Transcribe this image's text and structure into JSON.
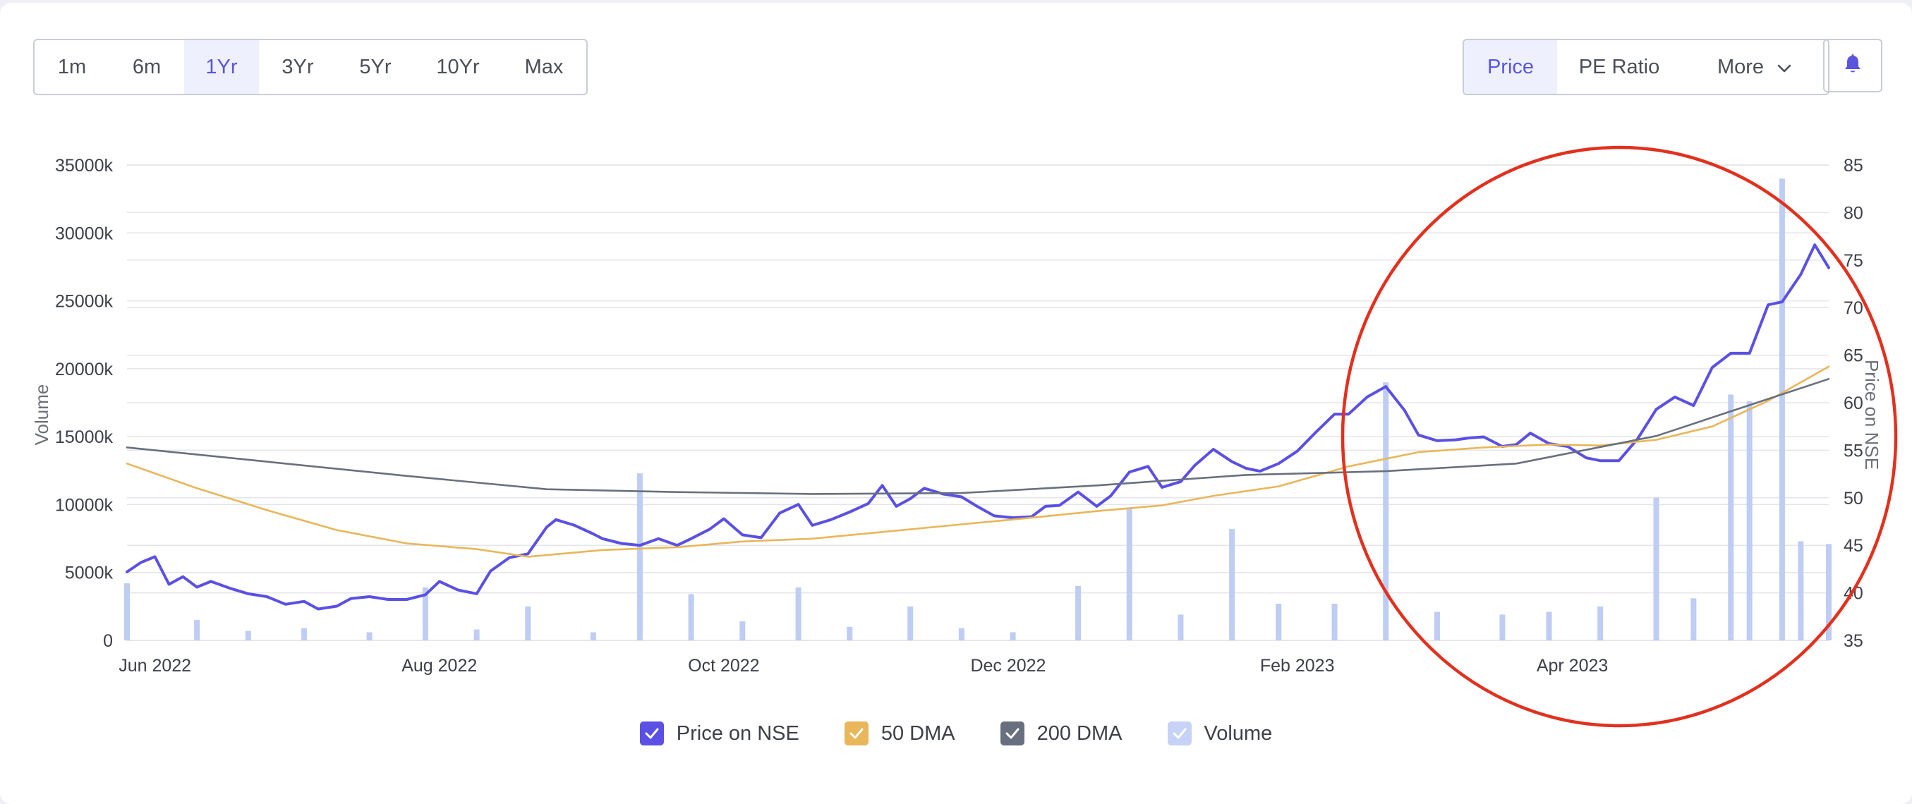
{
  "range_buttons": [
    "1m",
    "6m",
    "1Yr",
    "3Yr",
    "5Yr",
    "10Yr",
    "Max"
  ],
  "range_active": "1Yr",
  "metric_buttons": {
    "price": "Price",
    "pe": "PE Ratio",
    "more": "More"
  },
  "metric_active": "Price",
  "icons": {
    "alert": "bell-icon",
    "more": "chevron-down-icon",
    "legend": "checkmark-icon"
  },
  "colors": {
    "price": "#5b50e3",
    "dma50": "#e9b659",
    "dma200": "#68707f",
    "volume": "#bfcdf4",
    "highlight_circle": "#e1311e",
    "accent": "#5a55e0"
  },
  "annotation": {
    "type": "circle",
    "shape": "red freehand circle",
    "covers": "Feb 2023 - May 2023"
  },
  "chart_data": {
    "type": "line",
    "title": "",
    "xlabel": "",
    "ylabel_left": "Volume",
    "ylabel_right": "Price on NSE",
    "xlim": [
      "2022-05-26",
      "2023-05-26"
    ],
    "ylim_left": [
      0,
      35000
    ],
    "ylim_right": [
      35,
      85
    ],
    "y_left_ticks": [
      "0",
      "5000k",
      "10000k",
      "15000k",
      "20000k",
      "25000k",
      "30000k",
      "35000k"
    ],
    "y_right_ticks": [
      "35",
      "40",
      "45",
      "50",
      "55",
      "60",
      "65",
      "70",
      "75",
      "80",
      "85"
    ],
    "x_ticks": [
      {
        "label": "Jun 2022",
        "date": "2022-06-01"
      },
      {
        "label": "Aug 2022",
        "date": "2022-08-01"
      },
      {
        "label": "Oct 2022",
        "date": "2022-10-01"
      },
      {
        "label": "Dec 2022",
        "date": "2022-12-01"
      },
      {
        "label": "Feb 2023",
        "date": "2023-02-01"
      },
      {
        "label": "Apr 2023",
        "date": "2023-04-01"
      }
    ],
    "grid": true,
    "legend_position": "bottom",
    "series": [
      {
        "name": "Price on NSE",
        "axis": "right",
        "style": "line",
        "points": [
          [
            "2022-05-26",
            42.2
          ],
          [
            "2022-05-29",
            43.2
          ],
          [
            "2022-06-01",
            43.8
          ],
          [
            "2022-06-04",
            40.9
          ],
          [
            "2022-06-07",
            41.7
          ],
          [
            "2022-06-10",
            40.6
          ],
          [
            "2022-06-13",
            41.2
          ],
          [
            "2022-06-17",
            40.5
          ],
          [
            "2022-06-21",
            39.9
          ],
          [
            "2022-06-25",
            39.6
          ],
          [
            "2022-06-29",
            38.8
          ],
          [
            "2022-07-03",
            39.1
          ],
          [
            "2022-07-06",
            38.3
          ],
          [
            "2022-07-10",
            38.6
          ],
          [
            "2022-07-13",
            39.4
          ],
          [
            "2022-07-17",
            39.6
          ],
          [
            "2022-07-21",
            39.3
          ],
          [
            "2022-07-25",
            39.3
          ],
          [
            "2022-07-29",
            39.8
          ],
          [
            "2022-08-01",
            41.2
          ],
          [
            "2022-08-05",
            40.3
          ],
          [
            "2022-08-09",
            39.9
          ],
          [
            "2022-08-12",
            42.3
          ],
          [
            "2022-08-16",
            43.7
          ],
          [
            "2022-08-20",
            44.1
          ],
          [
            "2022-08-24",
            46.9
          ],
          [
            "2022-08-26",
            47.7
          ],
          [
            "2022-08-30",
            47.1
          ],
          [
            "2022-09-03",
            46.2
          ],
          [
            "2022-09-05",
            45.7
          ],
          [
            "2022-09-09",
            45.2
          ],
          [
            "2022-09-13",
            45.0
          ],
          [
            "2022-09-17",
            45.7
          ],
          [
            "2022-09-21",
            45.0
          ],
          [
            "2022-09-24",
            45.7
          ],
          [
            "2022-09-28",
            46.7
          ],
          [
            "2022-10-01",
            47.8
          ],
          [
            "2022-10-05",
            46.1
          ],
          [
            "2022-10-09",
            45.8
          ],
          [
            "2022-10-13",
            48.4
          ],
          [
            "2022-10-17",
            49.3
          ],
          [
            "2022-10-20",
            47.1
          ],
          [
            "2022-10-24",
            47.7
          ],
          [
            "2022-10-28",
            48.5
          ],
          [
            "2022-11-01",
            49.4
          ],
          [
            "2022-11-04",
            51.3
          ],
          [
            "2022-11-07",
            49.1
          ],
          [
            "2022-11-10",
            49.9
          ],
          [
            "2022-11-13",
            51.0
          ],
          [
            "2022-11-17",
            50.4
          ],
          [
            "2022-11-21",
            50.1
          ],
          [
            "2022-11-24",
            49.2
          ],
          [
            "2022-11-28",
            48.1
          ],
          [
            "2022-12-02",
            47.9
          ],
          [
            "2022-12-06",
            48.0
          ],
          [
            "2022-12-09",
            49.1
          ],
          [
            "2022-12-12",
            49.2
          ],
          [
            "2022-12-16",
            50.6
          ],
          [
            "2022-12-20",
            49.1
          ],
          [
            "2022-12-23",
            50.2
          ],
          [
            "2022-12-27",
            52.7
          ],
          [
            "2022-12-31",
            53.3
          ],
          [
            "2023-01-03",
            51.1
          ],
          [
            "2023-01-07",
            51.7
          ],
          [
            "2023-01-10",
            53.4
          ],
          [
            "2023-01-14",
            55.1
          ],
          [
            "2023-01-18",
            53.8
          ],
          [
            "2023-01-21",
            53.1
          ],
          [
            "2023-01-24",
            52.8
          ],
          [
            "2023-01-28",
            53.6
          ],
          [
            "2023-02-01",
            54.9
          ],
          [
            "2023-02-05",
            56.9
          ],
          [
            "2023-02-09",
            58.8
          ],
          [
            "2023-02-12",
            58.8
          ],
          [
            "2023-02-16",
            60.6
          ],
          [
            "2023-02-20",
            61.7
          ],
          [
            "2023-02-24",
            59.2
          ],
          [
            "2023-02-27",
            56.6
          ],
          [
            "2023-03-03",
            56.0
          ],
          [
            "2023-03-07",
            56.1
          ],
          [
            "2023-03-10",
            56.3
          ],
          [
            "2023-03-13",
            56.4
          ],
          [
            "2023-03-17",
            55.4
          ],
          [
            "2023-03-20",
            55.6
          ],
          [
            "2023-03-23",
            56.8
          ],
          [
            "2023-03-27",
            55.7
          ],
          [
            "2023-03-31",
            55.4
          ],
          [
            "2023-04-04",
            54.2
          ],
          [
            "2023-04-07",
            53.9
          ],
          [
            "2023-04-11",
            53.9
          ],
          [
            "2023-04-15",
            56.2
          ],
          [
            "2023-04-19",
            59.3
          ],
          [
            "2023-04-23",
            60.6
          ],
          [
            "2023-04-27",
            59.7
          ],
          [
            "2023-05-01",
            63.7
          ],
          [
            "2023-05-05",
            65.2
          ],
          [
            "2023-05-09",
            65.2
          ],
          [
            "2023-05-13",
            70.3
          ],
          [
            "2023-05-16",
            70.6
          ],
          [
            "2023-05-20",
            73.5
          ],
          [
            "2023-05-23",
            76.6
          ],
          [
            "2023-05-26",
            74.2
          ]
        ]
      },
      {
        "name": "50 DMA",
        "axis": "right",
        "style": "line",
        "points": [
          [
            "2022-05-26",
            53.6
          ],
          [
            "2022-06-10",
            51.0
          ],
          [
            "2022-06-25",
            48.7
          ],
          [
            "2022-07-10",
            46.6
          ],
          [
            "2022-07-25",
            45.2
          ],
          [
            "2022-08-09",
            44.6
          ],
          [
            "2022-08-20",
            43.8
          ],
          [
            "2022-09-05",
            44.5
          ],
          [
            "2022-09-21",
            44.8
          ],
          [
            "2022-10-05",
            45.4
          ],
          [
            "2022-10-20",
            45.7
          ],
          [
            "2022-11-04",
            46.4
          ],
          [
            "2022-11-21",
            47.2
          ],
          [
            "2022-12-06",
            47.9
          ],
          [
            "2022-12-20",
            48.6
          ],
          [
            "2023-01-03",
            49.2
          ],
          [
            "2023-01-14",
            50.2
          ],
          [
            "2023-01-28",
            51.2
          ],
          [
            "2023-02-12",
            53.3
          ],
          [
            "2023-02-27",
            54.8
          ],
          [
            "2023-03-13",
            55.3
          ],
          [
            "2023-03-27",
            55.6
          ],
          [
            "2023-04-07",
            55.5
          ],
          [
            "2023-04-19",
            56.1
          ],
          [
            "2023-05-01",
            57.5
          ],
          [
            "2023-05-13",
            60.2
          ],
          [
            "2023-05-26",
            63.8
          ]
        ]
      },
      {
        "name": "200 DMA",
        "axis": "right",
        "style": "line",
        "points": [
          [
            "2022-05-26",
            55.3
          ],
          [
            "2022-06-25",
            53.8
          ],
          [
            "2022-07-25",
            52.3
          ],
          [
            "2022-08-24",
            50.9
          ],
          [
            "2022-09-21",
            50.6
          ],
          [
            "2022-10-20",
            50.4
          ],
          [
            "2022-11-21",
            50.5
          ],
          [
            "2022-12-20",
            51.3
          ],
          [
            "2023-01-21",
            52.4
          ],
          [
            "2023-02-20",
            52.8
          ],
          [
            "2023-03-20",
            53.6
          ],
          [
            "2023-04-19",
            56.5
          ],
          [
            "2023-05-26",
            62.5
          ]
        ]
      },
      {
        "name": "Volume",
        "axis": "left",
        "style": "bar",
        "points": [
          [
            "2022-05-26",
            4200
          ],
          [
            "2022-06-10",
            1500
          ],
          [
            "2022-06-21",
            700
          ],
          [
            "2022-07-03",
            900
          ],
          [
            "2022-07-17",
            600
          ],
          [
            "2022-07-29",
            3900
          ],
          [
            "2022-08-09",
            800
          ],
          [
            "2022-08-20",
            2500
          ],
          [
            "2022-09-03",
            600
          ],
          [
            "2022-09-13",
            12300
          ],
          [
            "2022-09-24",
            3400
          ],
          [
            "2022-10-05",
            1400
          ],
          [
            "2022-10-17",
            3900
          ],
          [
            "2022-10-28",
            1000
          ],
          [
            "2022-11-10",
            2500
          ],
          [
            "2022-11-21",
            900
          ],
          [
            "2022-12-02",
            600
          ],
          [
            "2022-12-16",
            4000
          ],
          [
            "2022-12-27",
            9700
          ],
          [
            "2023-01-07",
            1900
          ],
          [
            "2023-01-18",
            8200
          ],
          [
            "2023-01-28",
            2700
          ],
          [
            "2023-02-09",
            2700
          ],
          [
            "2023-02-20",
            19000
          ],
          [
            "2023-03-03",
            2100
          ],
          [
            "2023-03-17",
            1900
          ],
          [
            "2023-03-27",
            2100
          ],
          [
            "2023-04-07",
            2500
          ],
          [
            "2023-04-19",
            10500
          ],
          [
            "2023-04-27",
            3100
          ],
          [
            "2023-05-05",
            18100
          ],
          [
            "2023-05-09",
            17600
          ],
          [
            "2023-05-16",
            34000
          ],
          [
            "2023-05-20",
            7300
          ],
          [
            "2023-05-26",
            7100
          ]
        ]
      }
    ]
  },
  "legend": [
    {
      "name": "Price on NSE",
      "checked": true
    },
    {
      "name": "50 DMA",
      "checked": true
    },
    {
      "name": "200 DMA",
      "checked": true
    },
    {
      "name": "Volume",
      "checked": true
    }
  ]
}
